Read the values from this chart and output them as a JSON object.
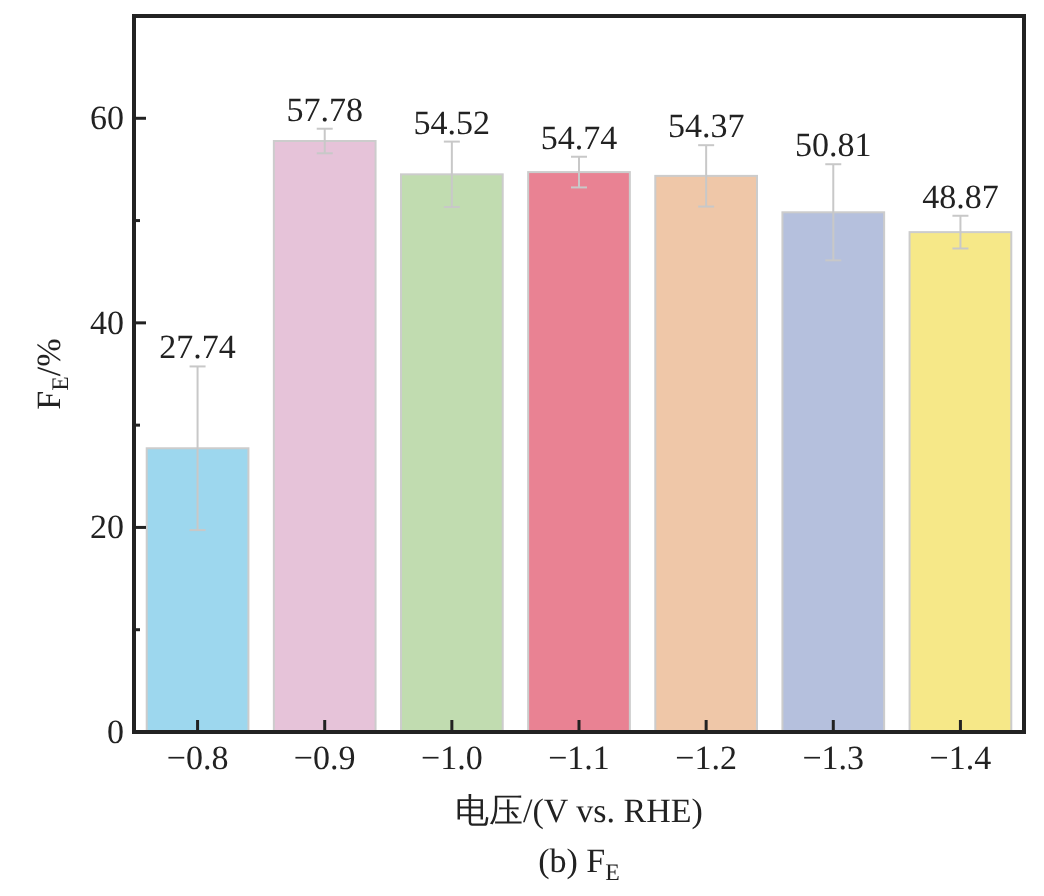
{
  "chart_data": {
    "type": "bar",
    "title": "(b) F$_{E}$",
    "xlabel": "电压/(V vs. RHE)",
    "ylabel": "F$_{E}$/%",
    "categories": [
      "−0.8",
      "−0.9",
      "−1.0",
      "−1.1",
      "−1.2",
      "−1.3",
      "−1.4"
    ],
    "values": [
      27.74,
      57.78,
      54.52,
      54.74,
      54.37,
      50.81,
      48.87
    ],
    "colors": [
      "#9dd7ee",
      "#e6c3d9",
      "#c1dcb0",
      "#e98293",
      "#efc7a8",
      "#b5c0dd",
      "#f6e888"
    ],
    "errors": [
      8,
      1.2,
      3.2,
      1.5,
      3,
      4.7,
      1.6
    ],
    "data_labels": true,
    "ylim": [
      0,
      70
    ],
    "yticks": [
      0,
      {
        "value": 10,
        "label": null
      },
      20,
      {
        "value": 30,
        "label": null
      },
      40,
      {
        "value": 50,
        "label": null
      },
      60
    ],
    "grid": false
  }
}
